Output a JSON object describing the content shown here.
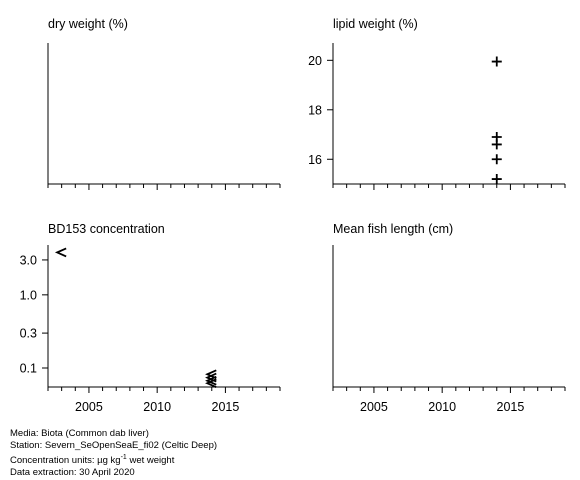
{
  "chart_data": [
    {
      "type": "scatter",
      "title": "dry weight (%)",
      "x_range": [
        2002,
        2019
      ],
      "x_ticks": [],
      "y_ticks": [],
      "series": []
    },
    {
      "type": "scatter",
      "title": "lipid weight (%)",
      "x_range": [
        2002,
        2019
      ],
      "x_ticks": [],
      "y_range": [
        15,
        20.7
      ],
      "y_ticks": [
        "16",
        "18",
        "20"
      ],
      "series": [
        {
          "marker": "+",
          "points": [
            {
              "x": 2014,
              "y": 19.95
            },
            {
              "x": 2014,
              "y": 16.9
            },
            {
              "x": 2014,
              "y": 16.6
            },
            {
              "x": 2014,
              "y": 16.0
            },
            {
              "x": 2014,
              "y": 15.2
            }
          ]
        }
      ]
    },
    {
      "type": "scatter",
      "title": "BD153 concentration",
      "x_range": [
        2002,
        2019
      ],
      "x_ticks": [
        "2005",
        "2010",
        "2015"
      ],
      "y_scale": "log",
      "y_range": [
        0.055,
        4.8
      ],
      "y_ticks": [
        "0.1",
        "0.3",
        "1.0",
        "3.0"
      ],
      "series": [
        {
          "marker": "<",
          "note": "less-than values",
          "points": [
            {
              "x": 2003,
              "y": 3.8
            },
            {
              "x": 2014,
              "y": 0.082
            },
            {
              "x": 2014,
              "y": 0.074
            },
            {
              "x": 2014,
              "y": 0.067
            },
            {
              "x": 2014,
              "y": 0.062
            }
          ]
        }
      ]
    },
    {
      "type": "scatter",
      "title": "Mean fish length (cm)",
      "x_range": [
        2002,
        2019
      ],
      "x_ticks": [
        "2005",
        "2010",
        "2015"
      ],
      "y_ticks": [],
      "series": []
    }
  ],
  "footer": {
    "media": "Media: Biota (Common dab liver)",
    "station": "Station: Severn_SeOpenSeaE_fi02 (Celtic Deep)",
    "units_prefix": "Concentration units:  µg kg",
    "units_sup": "-1",
    "units_suffix": " wet weight",
    "extraction": "Data extraction: 30 April 2020"
  }
}
